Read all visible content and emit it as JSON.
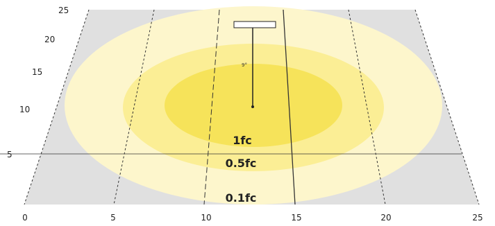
{
  "diagram": {
    "x_axis_ticks": [
      "0",
      "5",
      "10",
      "15",
      "20",
      "25"
    ],
    "y_axis_ticks": [
      "25",
      "20",
      "15",
      "10",
      "5"
    ],
    "contour_labels": [
      "1fc",
      "0.5fc",
      "0.1fc"
    ],
    "fixture_angle_label": "9°",
    "colors": {
      "floor_gray": "#e0e0e0",
      "contour_outer": "#fdf6cc",
      "contour_mid": "#fbee95",
      "contour_inner": "#f6e35a"
    }
  }
}
